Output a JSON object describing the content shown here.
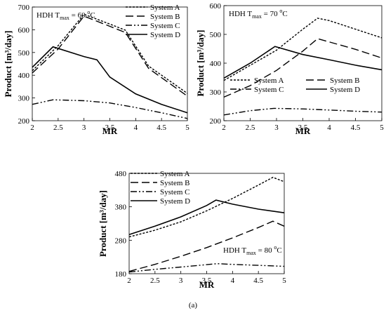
{
  "chart_data": [
    {
      "type": "line",
      "annotation": "HDH T",
      "annotation_sub": "max",
      "annotation_value": "= 60 ",
      "annotation_sup": "o",
      "annotation_unit": "C",
      "xlabel": "MR",
      "ylabel": "Product [m³/day]",
      "xlim": [
        2,
        5
      ],
      "ylim": [
        200,
        700
      ],
      "xticks": [
        "2",
        "2.5",
        "3",
        "3.5",
        "4",
        "4.5",
        "5"
      ],
      "yticks": [
        "200",
        "300",
        "400",
        "500",
        "600",
        "700"
      ],
      "legend_position": "top-right",
      "series": [
        {
          "name": "System A",
          "x": [
            2,
            2.5,
            3,
            3.5,
            3.8,
            4.25,
            5
          ],
          "y": [
            420,
            530,
            668,
            625,
            598,
            440,
            320
          ]
        },
        {
          "name": "System B",
          "x": [
            2,
            2.5,
            3,
            3.5,
            3.8,
            4.25,
            5
          ],
          "y": [
            410,
            515,
            660,
            615,
            588,
            430,
            308
          ]
        },
        {
          "name": "System C",
          "x": [
            2,
            2.4,
            3,
            3.5,
            4,
            4.5,
            5
          ],
          "y": [
            272,
            292,
            288,
            278,
            258,
            235,
            210
          ]
        },
        {
          "name": "System D",
          "x": [
            2,
            2.4,
            3,
            3.25,
            3.5,
            4,
            4.5,
            5
          ],
          "y": [
            435,
            525,
            482,
            468,
            392,
            318,
            272,
            235
          ]
        }
      ]
    },
    {
      "type": "line",
      "annotation": "HDH T",
      "annotation_sub": "max",
      "annotation_value": "= 70 ",
      "annotation_sup": "o",
      "annotation_unit": "C",
      "xlabel": "MR",
      "ylabel": "Product [m³/day]",
      "xlim": [
        2,
        5
      ],
      "ylim": [
        200,
        600
      ],
      "xticks": [
        "2",
        "2.5",
        "3",
        "3.5",
        "4",
        "4.5",
        "5"
      ],
      "yticks": [
        "200",
        "300",
        "400",
        "500",
        "600"
      ],
      "legend_position": "middle-right",
      "series": [
        {
          "name": "System A",
          "x": [
            2,
            3,
            3.5,
            3.78,
            4,
            4.5,
            5
          ],
          "y": [
            340,
            445,
            518,
            556,
            548,
            518,
            488
          ]
        },
        {
          "name": "System B",
          "x": [
            2,
            2.5,
            3,
            3.5,
            3.78,
            4,
            4.5,
            5
          ],
          "y": [
            282,
            322,
            375,
            442,
            485,
            474,
            448,
            418
          ]
        },
        {
          "name": "System C",
          "x": [
            2,
            2.5,
            2.95,
            3.5,
            4,
            4.5,
            5
          ],
          "y": [
            220,
            235,
            243,
            241,
            237,
            233,
            230
          ]
        },
        {
          "name": "System D",
          "x": [
            2,
            2.5,
            2.97,
            3.5,
            4,
            4.5,
            5
          ],
          "y": [
            348,
            400,
            458,
            430,
            412,
            393,
            377
          ]
        }
      ]
    },
    {
      "type": "line",
      "annotation": "HDH T",
      "annotation_sub": "max",
      "annotation_value": "= 80 ",
      "annotation_sup": "o",
      "annotation_unit": "C",
      "xlabel": "MR",
      "ylabel": "Product [m³/day]",
      "xlim": [
        2,
        5
      ],
      "ylim": [
        180,
        480
      ],
      "xticks": [
        "2",
        "2.5",
        "3",
        "3.5",
        "4",
        "4.5",
        "5"
      ],
      "yticks": [
        "180",
        "280",
        "380",
        "480"
      ],
      "legend_position": "top-left",
      "series": [
        {
          "name": "System A",
          "x": [
            2,
            2.5,
            3,
            3.5,
            4,
            4.5,
            4.78,
            5
          ],
          "y": [
            290,
            310,
            335,
            368,
            405,
            445,
            468,
            455
          ]
        },
        {
          "name": "System B",
          "x": [
            2,
            2.5,
            3,
            3.5,
            4,
            4.5,
            4.78,
            5
          ],
          "y": [
            187,
            208,
            232,
            258,
            287,
            318,
            337,
            322
          ]
        },
        {
          "name": "System C",
          "x": [
            2,
            2.5,
            3,
            3.5,
            3.7,
            4,
            4.5,
            5
          ],
          "y": [
            185,
            193,
            200,
            207,
            210,
            208,
            205,
            202
          ]
        },
        {
          "name": "System D",
          "x": [
            2,
            2.5,
            3,
            3.5,
            3.68,
            4,
            4.5,
            5
          ],
          "y": [
            297,
            322,
            350,
            384,
            400,
            388,
            373,
            362
          ]
        }
      ]
    }
  ],
  "caption": "(a)",
  "styles": {
    "System A": "3,2",
    "System B": "11,5",
    "System C": "9,3,2,3,2,3",
    "System D": ""
  }
}
